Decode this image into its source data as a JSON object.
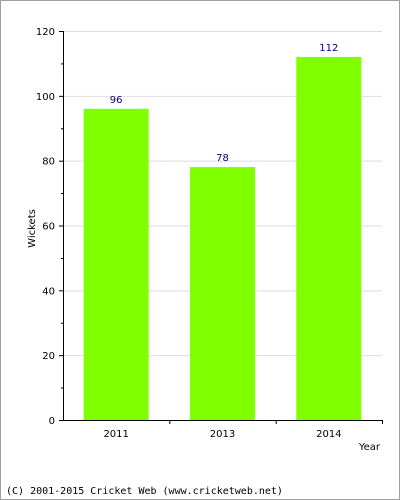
{
  "chart_data": {
    "type": "bar",
    "categories": [
      "2011",
      "2013",
      "2014"
    ],
    "values": [
      96,
      78,
      112
    ],
    "value_labels": [
      "96",
      "78",
      "112"
    ],
    "xlabel": "Year",
    "ylabel": "Wickets",
    "ylim": [
      0,
      120
    ],
    "yticks": [
      0,
      20,
      40,
      60,
      80,
      100,
      120
    ],
    "ytick_labels": [
      "0",
      "20",
      "40",
      "60",
      "80",
      "100",
      "120"
    ],
    "grid": true,
    "bar_color": "#80ff00",
    "value_label_color": "#000080",
    "grid_color": "#dddddd"
  },
  "footer": {
    "copyright": "(C) 2001-2015 Cricket Web (www.cricketweb.net)"
  }
}
